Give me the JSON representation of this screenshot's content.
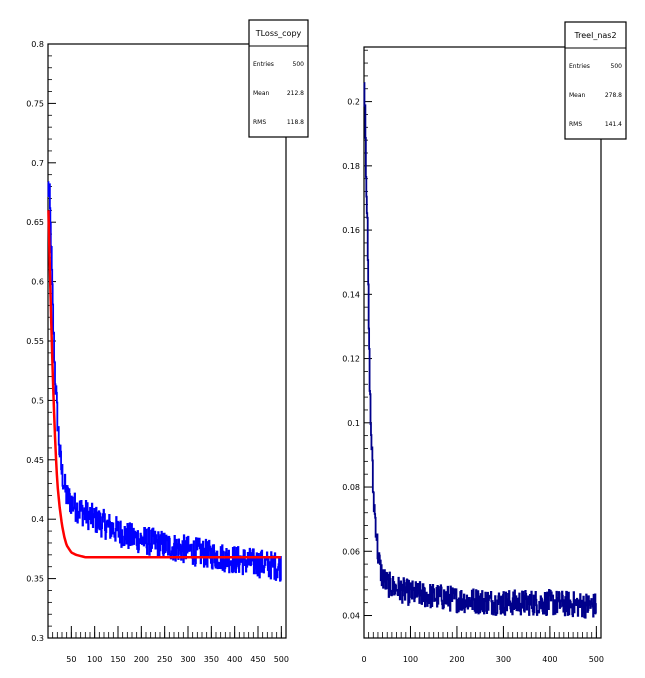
{
  "chart_data": [
    {
      "type": "line",
      "title": "",
      "xlabel": "",
      "ylabel": "",
      "xlim": [
        0,
        510
      ],
      "ylim": [
        0.3,
        0.8
      ],
      "x_ticks": [
        50,
        100,
        150,
        200,
        250,
        300,
        350,
        400,
        450,
        500
      ],
      "x_tick_labels": [
        "50",
        "100",
        "150",
        "200",
        "250",
        "300",
        "350",
        "400",
        "450",
        "500"
      ],
      "y_ticks": [
        0.3,
        0.35,
        0.4,
        0.45,
        0.5,
        0.55,
        0.6,
        0.65,
        0.7,
        0.75,
        0.8
      ],
      "y_tick_labels": [
        "0.3",
        "0.35",
        "0.4",
        "0.45",
        "0.5",
        "0.55",
        "0.6",
        "0.65",
        "0.7",
        "0.75",
        "0.8"
      ],
      "stats_box": {
        "title": "TLoss_copy",
        "rows": [
          {
            "label": "Entries",
            "value": "500"
          },
          {
            "label": "Mean",
            "value": "212.8"
          },
          {
            "label": "RMS",
            "value": "118.8"
          }
        ]
      },
      "colors": {
        "data": "#0000ff",
        "fit": "#ff0000"
      },
      "series": [
        {
          "kind": "data-histogram",
          "x": [
            1,
            4,
            8,
            12,
            16,
            20,
            25,
            30,
            35,
            40,
            50,
            60,
            80,
            100,
            125,
            150,
            175,
            200,
            250,
            300,
            350,
            400,
            450,
            500
          ],
          "values": [
            0.68,
            0.67,
            0.62,
            0.56,
            0.52,
            0.49,
            0.46,
            0.44,
            0.43,
            0.42,
            0.415,
            0.41,
            0.405,
            0.4,
            0.395,
            0.39,
            0.385,
            0.383,
            0.378,
            0.374,
            0.37,
            0.366,
            0.363,
            0.36
          ],
          "noise": 0.012
        },
        {
          "kind": "fit",
          "x": [
            1,
            4,
            8,
            12,
            16,
            20,
            25,
            30,
            35,
            40,
            50,
            60,
            70,
            80,
            100,
            150,
            200,
            300,
            400,
            500
          ],
          "values": [
            0.66,
            0.61,
            0.55,
            0.5,
            0.46,
            0.43,
            0.41,
            0.395,
            0.385,
            0.378,
            0.372,
            0.37,
            0.369,
            0.368,
            0.368,
            0.368,
            0.368,
            0.368,
            0.368,
            0.368
          ]
        }
      ]
    },
    {
      "type": "line",
      "title": "",
      "xlabel": "",
      "ylabel": "",
      "xlim": [
        0,
        510
      ],
      "ylim": [
        0.033,
        0.217
      ],
      "x_ticks": [
        0,
        100,
        200,
        300,
        400,
        500
      ],
      "x_tick_labels": [
        "0",
        "100",
        "200",
        "300",
        "400",
        "500"
      ],
      "y_ticks": [
        0.04,
        0.06,
        0.08,
        0.1,
        0.12,
        0.14,
        0.16,
        0.18,
        0.2
      ],
      "y_tick_labels": [
        "0.04",
        "0.06",
        "0.08",
        "0.1",
        "0.12",
        "0.14",
        "0.16",
        "0.18",
        "0.2"
      ],
      "stats_box": {
        "title": "Treel_nas2",
        "rows": [
          {
            "label": "Entries",
            "value": "500"
          },
          {
            "label": "Mean",
            "value": "278.8"
          },
          {
            "label": "RMS",
            "value": "141.4"
          }
        ]
      },
      "colors": {
        "data": "#00008b"
      },
      "series": [
        {
          "kind": "data-histogram",
          "x": [
            1,
            3,
            5,
            8,
            10,
            12,
            15,
            18,
            20,
            22,
            25,
            28,
            30,
            35,
            40,
            50,
            60,
            80,
            100,
            150,
            200,
            300,
            400,
            500
          ],
          "values": [
            0.205,
            0.2,
            0.18,
            0.16,
            0.14,
            0.12,
            0.1,
            0.09,
            0.08,
            0.075,
            0.07,
            0.065,
            0.06,
            0.055,
            0.052,
            0.05,
            0.049,
            0.048,
            0.047,
            0.046,
            0.045,
            0.044,
            0.044,
            0.043
          ],
          "noise": 0.004
        }
      ]
    }
  ]
}
